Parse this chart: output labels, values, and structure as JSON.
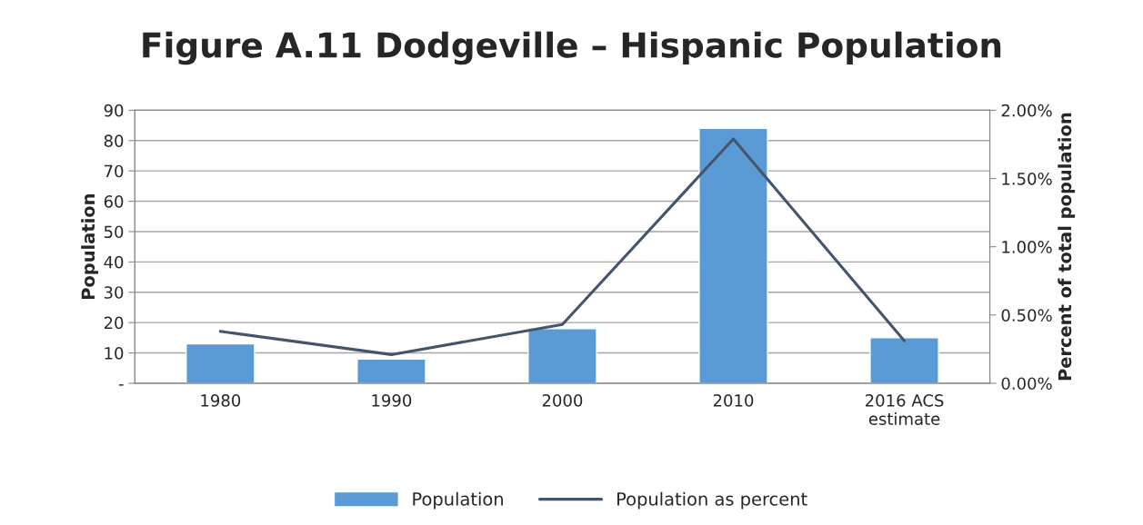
{
  "chart_data": {
    "type": "bar",
    "title": "Figure A.11 Dodgeville – Hispanic Population",
    "categories": [
      "1980",
      "1990",
      "2000",
      "2010",
      "2016 ACS\nestimate"
    ],
    "series": [
      {
        "name": "Population",
        "color": "#5b9bd5",
        "values": [
          13,
          8,
          18,
          84,
          15
        ]
      },
      {
        "name": "Population as percent",
        "type": "line",
        "axis": "y2",
        "color": "#44546a",
        "values": [
          0.38,
          0.21,
          0.43,
          1.79,
          0.31
        ]
      }
    ],
    "ylabel": "Population",
    "y2label": "Percent of total population",
    "ylim": [
      0,
      90
    ],
    "yticks": [
      {
        "value": 0,
        "label": "-"
      },
      10,
      20,
      30,
      40,
      50,
      60,
      70,
      80,
      90
    ],
    "y2lim": [
      0,
      2
    ],
    "y2ticks": [
      {
        "value": 0,
        "label": "0.00%"
      },
      {
        "value": 0.5,
        "label": "0.50%"
      },
      {
        "value": 1,
        "label": "1.00%"
      },
      {
        "value": 1.5,
        "label": "1.50%"
      },
      {
        "value": 2,
        "label": "2.00%"
      }
    ],
    "grid": "y",
    "legend": "bottom",
    "marker": "none",
    "line_style": "solid"
  }
}
